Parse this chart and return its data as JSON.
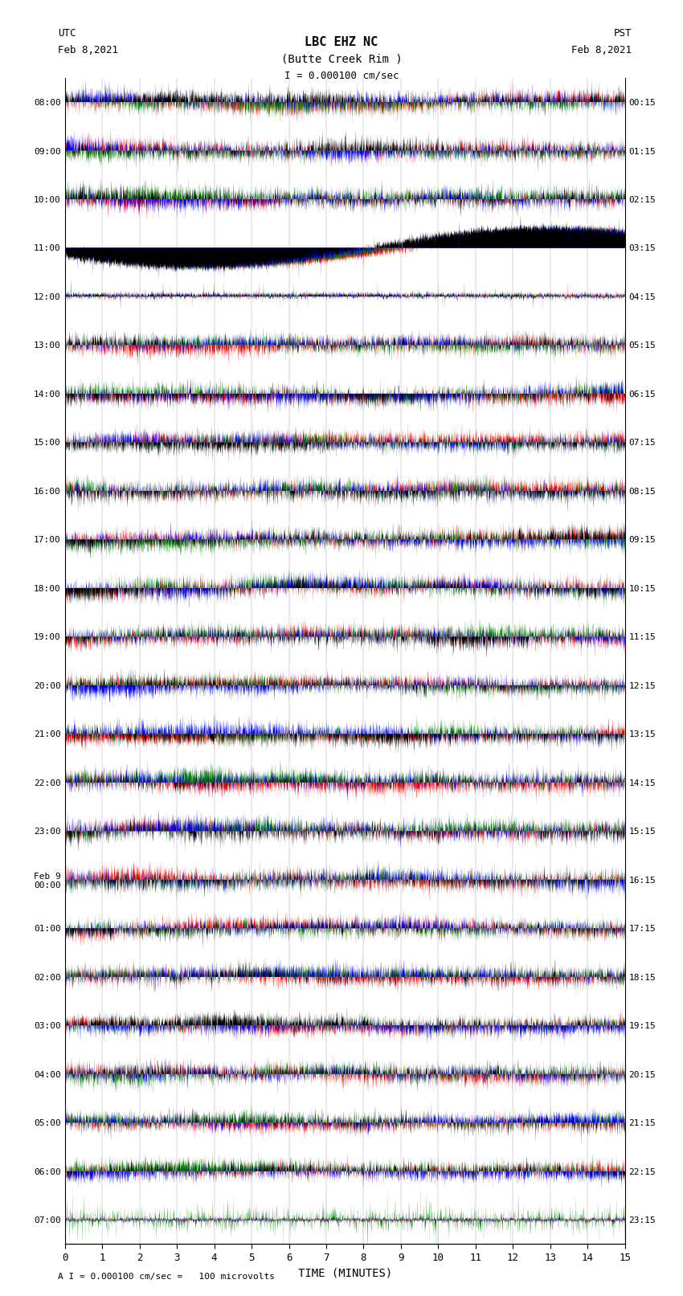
{
  "title_line1": "LBC EHZ NC",
  "title_line2": "(Butte Creek Rim )",
  "scale_text": "I = 0.000100 cm/sec",
  "footer_text": "A I = 0.000100 cm/sec =   100 microvolts",
  "utc_label": "UTC",
  "utc_date": "Feb 8,2021",
  "pst_label": "PST",
  "pst_date": "Feb 8,2021",
  "xlabel": "TIME (MINUTES)",
  "left_times": [
    "08:00",
    "09:00",
    "10:00",
    "11:00",
    "12:00",
    "13:00",
    "14:00",
    "15:00",
    "16:00",
    "17:00",
    "18:00",
    "19:00",
    "20:00",
    "21:00",
    "22:00",
    "23:00",
    "Feb 9\n00:00",
    "01:00",
    "02:00",
    "03:00",
    "04:00",
    "05:00",
    "06:00",
    "07:00"
  ],
  "right_times": [
    "00:15",
    "01:15",
    "02:15",
    "03:15",
    "04:15",
    "05:15",
    "06:15",
    "07:15",
    "08:15",
    "09:15",
    "10:15",
    "11:15",
    "12:15",
    "13:15",
    "14:15",
    "15:15",
    "16:15",
    "17:15",
    "18:15",
    "19:15",
    "20:15",
    "21:15",
    "22:15",
    "23:15"
  ],
  "num_rows": 24,
  "minutes_per_row": 15,
  "bg_color": "white",
  "row_amplitudes": [
    0.95,
    0.95,
    0.92,
    0.3,
    0.05,
    0.88,
    0.9,
    0.85,
    0.92,
    0.9,
    0.9,
    0.9,
    0.85,
    0.88,
    0.95,
    0.92,
    0.9,
    0.88,
    0.88,
    0.85,
    0.88,
    0.85,
    0.82,
    0.1
  ],
  "special_rows": {
    "3": "quiet_with_signals",
    "4": "very_quiet",
    "23": "quiet_green"
  },
  "fig_width": 8.5,
  "fig_height": 16.13,
  "dpi": 100
}
